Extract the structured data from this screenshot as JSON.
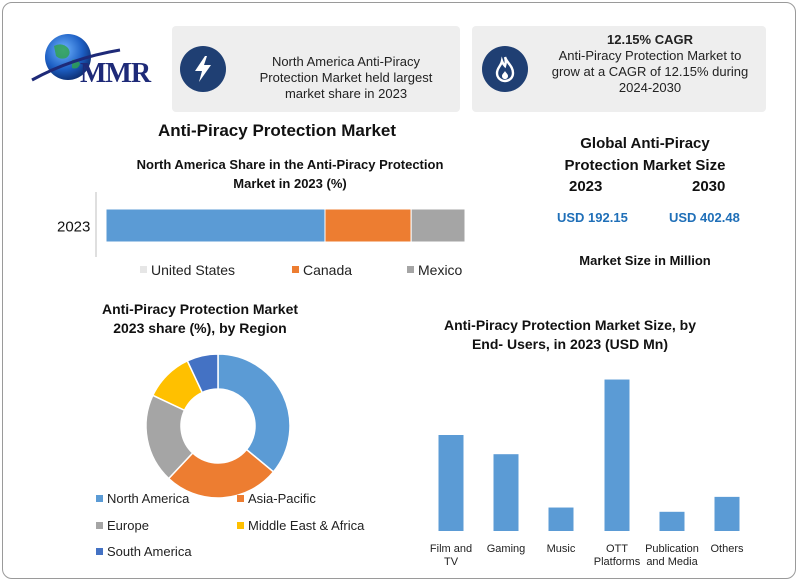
{
  "logo": {
    "text": "MMR"
  },
  "info_boxes": [
    {
      "icon": "lightning-icon",
      "lines": [
        "North America Anti-Piracy",
        "Protection Market held largest",
        "market share in 2023"
      ]
    },
    {
      "icon": "flame-icon",
      "heading": "12.15% CAGR",
      "lines": [
        "Anti-Piracy Protection Market to",
        "grow at a CAGR of 12.15% during",
        "2024-2030"
      ]
    }
  ],
  "main_title": "Anti-Piracy Protection Market",
  "market_size": {
    "title_line1": "Global Anti-Piracy",
    "title_line2": "Protection Market Size",
    "year_2023": "2023",
    "year_2030": "2030",
    "value_2023": "USD 192.15",
    "value_2030": "USD 402.48",
    "footer": "Market Size in Million"
  },
  "colors": {
    "blue": "#5b9bd5",
    "orange": "#ed7d31",
    "gray": "#a5a5a5",
    "yellow": "#ffc000",
    "darkblue": "#4472c4",
    "navy": "#1f3f73"
  },
  "chart_data": [
    {
      "type": "bar",
      "orientation": "horizontal-stacked",
      "title_line1": "North America Share in the Anti-Piracy Protection",
      "title_line2": "Market in 2023 (%)",
      "categories": [
        "2023"
      ],
      "series": [
        {
          "name": "United States",
          "values": [
            61
          ]
        },
        {
          "name": "Canada",
          "values": [
            24
          ]
        },
        {
          "name": "Mexico",
          "values": [
            15
          ]
        }
      ],
      "xlim": [
        0,
        100
      ],
      "legend": "bottom"
    },
    {
      "type": "pie",
      "variant": "donut",
      "title_line1": "Anti-Piracy Protection Market",
      "title_line2": "2023 share (%), by Region",
      "categories": [
        "North America",
        "Asia-Pacific",
        "Europe",
        "Middle East & Africa",
        "South America"
      ],
      "values": [
        36,
        26,
        20,
        11,
        7
      ],
      "legend": "bottom"
    },
    {
      "type": "bar",
      "title_line1": "Anti-Piracy Protection Market Size, by",
      "title_line2": "End- Users, in 2023 (USD Mn)",
      "categories": [
        [
          "Film and",
          "TV"
        ],
        [
          "Gaming"
        ],
        [
          "Music"
        ],
        [
          "OTT",
          "Platforms"
        ],
        [
          "Publication",
          "and Media"
        ],
        [
          "Others"
        ]
      ],
      "values": [
        45,
        36,
        11,
        71,
        9,
        16
      ],
      "ylim": [
        0,
        75
      ],
      "grid": false,
      "axis": false
    }
  ]
}
